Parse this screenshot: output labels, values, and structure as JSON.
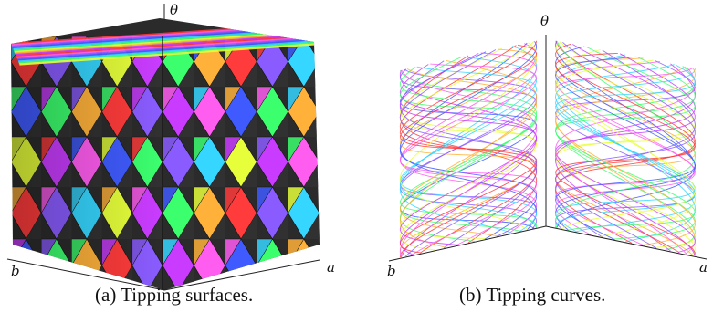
{
  "panel_a": {
    "caption": "(a) Tipping surfaces.",
    "axis_labels": {
      "vertical": "θ",
      "left": "b",
      "right": "a"
    }
  },
  "panel_b": {
    "caption": "(b) Tipping curves.",
    "axis_labels": {
      "vertical": "θ",
      "left": "b",
      "right": "a"
    }
  },
  "colors": [
    "#ff3b3b",
    "#ff5cf0",
    "#8a5cff",
    "#3f5bff",
    "#35d6ff",
    "#3cff6e",
    "#e6ff3a",
    "#ffb13a",
    "#c93cff"
  ]
}
